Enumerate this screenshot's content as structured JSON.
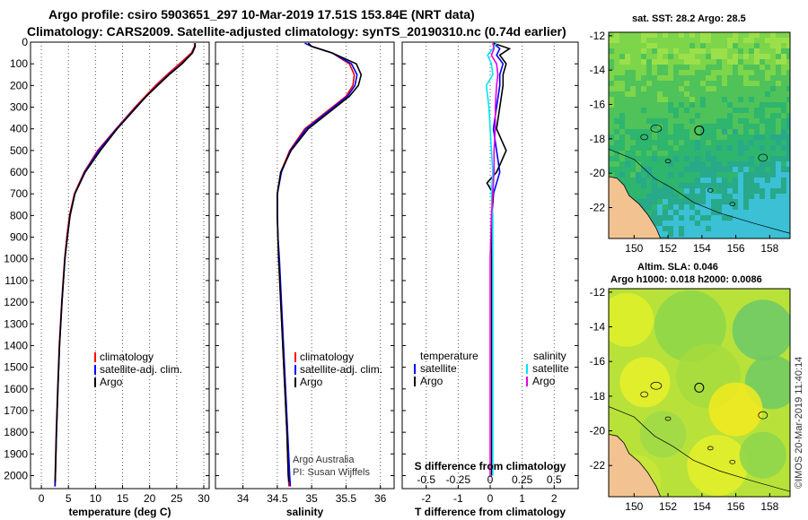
{
  "titles": {
    "line1": "Argo profile: csiro 5903651_297 10-Mar-2019 17.51S 153.84E (NRT data)",
    "line2": "Climatology: CARS2009. Satellite-adjusted climatology: synTS_20190310.nc (0.74d earlier)"
  },
  "colors": {
    "climatology": "#ff0000",
    "satellite": "#0000ff",
    "argo": "#000000",
    "t_sat": "#0000ff",
    "s_sat": "#00e5ff",
    "s_argo": "#e600e6",
    "land": "#f2c391"
  },
  "chart_data": [
    {
      "type": "line",
      "id": "temperature",
      "xlabel": "temperature (deg C)",
      "xlim": [
        -2,
        31
      ],
      "xticks": [
        0,
        5,
        10,
        15,
        20,
        25,
        30
      ],
      "ylim": [
        2060,
        0
      ],
      "yticks": [
        0,
        100,
        200,
        300,
        400,
        500,
        600,
        700,
        800,
        900,
        1000,
        1100,
        1200,
        1300,
        1400,
        1500,
        1600,
        1700,
        1800,
        1900,
        2000
      ],
      "legend": [
        "climatology",
        "satellite-adj. clim.",
        "Argo"
      ],
      "series": [
        {
          "name": "climatology",
          "depth": [
            5,
            20,
            50,
            100,
            150,
            200,
            250,
            300,
            400,
            500,
            600,
            700,
            800,
            900,
            1000,
            1200,
            1400,
            1600,
            1800,
            2000,
            2050
          ],
          "values": [
            28.3,
            28.3,
            27.7,
            25.5,
            23.2,
            21.1,
            19.2,
            17.3,
            13.8,
            10.4,
            7.9,
            6.1,
            5.2,
            4.7,
            4.3,
            3.75,
            3.3,
            3.0,
            2.75,
            2.55,
            2.5
          ]
        },
        {
          "name": "satellite-adj. clim.",
          "depth": [
            5,
            20,
            50,
            100,
            150,
            200,
            250,
            300,
            400,
            500,
            600,
            700,
            800,
            900,
            1000,
            1200,
            1400,
            1600,
            1800,
            2000,
            2050
          ],
          "values": [
            28.4,
            28.4,
            27.9,
            25.9,
            23.5,
            21.4,
            19.4,
            17.5,
            13.9,
            10.6,
            8.0,
            6.2,
            5.3,
            4.8,
            4.35,
            3.8,
            3.35,
            3.05,
            2.8,
            2.6,
            2.55
          ]
        },
        {
          "name": "Argo",
          "depth": [
            5,
            20,
            50,
            100,
            150,
            200,
            250,
            300,
            400,
            500,
            600,
            700,
            800,
            900,
            1000,
            1200,
            1400,
            1600,
            1800,
            2000,
            2030
          ],
          "values": [
            28.4,
            28.4,
            27.9,
            26.0,
            23.6,
            21.5,
            19.4,
            17.6,
            14.0,
            10.9,
            8.1,
            6.2,
            5.3,
            4.8,
            4.35,
            3.8,
            3.35,
            3.05,
            2.8,
            2.6,
            2.55
          ]
        }
      ]
    },
    {
      "type": "line",
      "id": "salinity",
      "xlabel": "salinity",
      "xlim": [
        33.6,
        36.2
      ],
      "xticks": [
        34,
        34.5,
        35,
        35.5,
        36
      ],
      "ylim": [
        2060,
        0
      ],
      "legend": [
        "climatology",
        "satellite-adj. clim.",
        "Argo"
      ],
      "series": [
        {
          "name": "climatology",
          "depth": [
            5,
            20,
            50,
            100,
            150,
            200,
            250,
            300,
            400,
            500,
            600,
            700,
            800,
            900,
            1000,
            1200,
            1400,
            1600,
            1800,
            2000,
            2050
          ],
          "values": [
            34.95,
            35.0,
            35.3,
            35.55,
            35.62,
            35.6,
            35.5,
            35.3,
            34.9,
            34.68,
            34.55,
            34.5,
            34.5,
            34.51,
            34.52,
            34.55,
            34.58,
            34.61,
            34.64,
            34.66,
            34.67
          ]
        },
        {
          "name": "satellite-adj. clim.",
          "depth": [
            5,
            20,
            50,
            100,
            150,
            200,
            250,
            300,
            400,
            500,
            600,
            700,
            800,
            900,
            1000,
            1200,
            1400,
            1600,
            1800,
            2000,
            2050
          ],
          "values": [
            34.9,
            35.0,
            35.3,
            35.58,
            35.66,
            35.63,
            35.52,
            35.32,
            34.92,
            34.69,
            34.56,
            34.5,
            34.5,
            34.51,
            34.53,
            34.56,
            34.59,
            34.62,
            34.65,
            34.68,
            34.69
          ]
        },
        {
          "name": "Argo",
          "depth": [
            5,
            20,
            50,
            100,
            150,
            200,
            250,
            300,
            400,
            500,
            600,
            700,
            800,
            900,
            1000,
            1200,
            1400,
            1600,
            1800,
            2000,
            2030
          ],
          "values": [
            34.95,
            35.0,
            35.3,
            35.65,
            35.72,
            35.68,
            35.55,
            35.35,
            34.95,
            34.7,
            34.55,
            34.5,
            34.5,
            34.51,
            34.52,
            34.55,
            34.58,
            34.61,
            34.64,
            34.66,
            34.67
          ]
        }
      ],
      "credit": [
        "Argo Australia",
        "PI: Susan Wijffels"
      ]
    },
    {
      "type": "line",
      "id": "differences",
      "xlabel": "T difference from climatology",
      "xlabel_top": "S difference from climatology",
      "xlim": [
        -2.75,
        2.75
      ],
      "xticks": [
        -2,
        -1,
        0,
        1,
        2
      ],
      "xlim_top": [
        -0.6875,
        0.6875
      ],
      "xticks_top": [
        -0.5,
        -0.25,
        0,
        0.25,
        0.5
      ],
      "xticklabels_top": [
        "-0.5",
        "-0.25",
        "0",
        "0.25",
        "0.5"
      ],
      "ylim": [
        2060,
        0
      ],
      "legend_t": {
        "header": "temperature",
        "entries": [
          "satellite",
          "Argo"
        ]
      },
      "legend_s": {
        "header": "salinity",
        "entries": [
          "satellite",
          "Argo"
        ]
      },
      "series": [
        {
          "name": "T satellite",
          "axis": "T",
          "depth": [
            5,
            30,
            60,
            100,
            150,
            200,
            300,
            400,
            500,
            600,
            700,
            800,
            1000,
            1200,
            1500,
            2000
          ],
          "values": [
            0.1,
            0.3,
            0.2,
            0.4,
            0.3,
            0.3,
            0.2,
            0.1,
            0.2,
            0.3,
            0.1,
            0.05,
            0.05,
            0.05,
            0.05,
            0.05
          ]
        },
        {
          "name": "T Argo",
          "axis": "T",
          "depth": [
            5,
            30,
            60,
            100,
            150,
            200,
            300,
            400,
            500,
            550,
            600,
            650,
            700,
            800,
            1000,
            1200,
            1500,
            2000
          ],
          "values": [
            0.1,
            0.6,
            0.3,
            0.5,
            0.4,
            0.4,
            0.3,
            0.2,
            0.5,
            0.35,
            0.2,
            -0.1,
            0.1,
            0.05,
            0.05,
            0.05,
            0.05,
            0.05
          ]
        },
        {
          "name": "S satellite",
          "axis": "S",
          "depth": [
            5,
            30,
            60,
            100,
            150,
            200,
            300,
            400,
            500,
            600,
            700,
            800,
            1000,
            1200,
            1500,
            2000
          ],
          "values": [
            0.05,
            0.02,
            -0.02,
            0.01,
            0.02,
            -0.03,
            -0.01,
            0.0,
            0.01,
            0.02,
            0.01,
            0.02,
            0.02,
            0.02,
            0.02,
            0.02
          ]
        },
        {
          "name": "S Argo",
          "axis": "S",
          "depth": [
            5,
            30,
            60,
            100,
            150,
            200,
            300,
            400,
            500,
            600,
            700,
            800,
            1000,
            1200,
            1500,
            2000
          ],
          "values": [
            0.02,
            0.03,
            0.01,
            0.05,
            0.06,
            0.05,
            0.04,
            0.04,
            0.03,
            0.03,
            0.02,
            0.01,
            0.0,
            0.0,
            0.0,
            0.0
          ]
        }
      ]
    },
    {
      "type": "heatmap",
      "id": "sst-map",
      "title": "sat. SST: 28.2 Argo: 28.5",
      "xlim": [
        148.5,
        159.2
      ],
      "ylim": [
        -23.8,
        -11.8
      ],
      "xticks": [
        150,
        152,
        154,
        156,
        158
      ],
      "yticks": [
        -12,
        -14,
        -16,
        -18,
        -20,
        -22
      ],
      "marker": {
        "lon": 153.84,
        "lat": -17.51
      }
    },
    {
      "type": "heatmap",
      "id": "sla-map",
      "title_line1": "Altim. SLA: 0.046",
      "title_line2": "Argo h1000: 0.018 h2000: 0.0086",
      "xlim": [
        148.5,
        159.2
      ],
      "ylim": [
        -23.8,
        -11.8
      ],
      "xticks": [
        150,
        152,
        154,
        156,
        158
      ],
      "yticks": [
        -12,
        -14,
        -16,
        -18,
        -20,
        -22
      ],
      "marker": {
        "lon": 153.84,
        "lat": -17.51
      },
      "watermark": "©IMOS 20-Mar-2019 11:40:14"
    }
  ]
}
